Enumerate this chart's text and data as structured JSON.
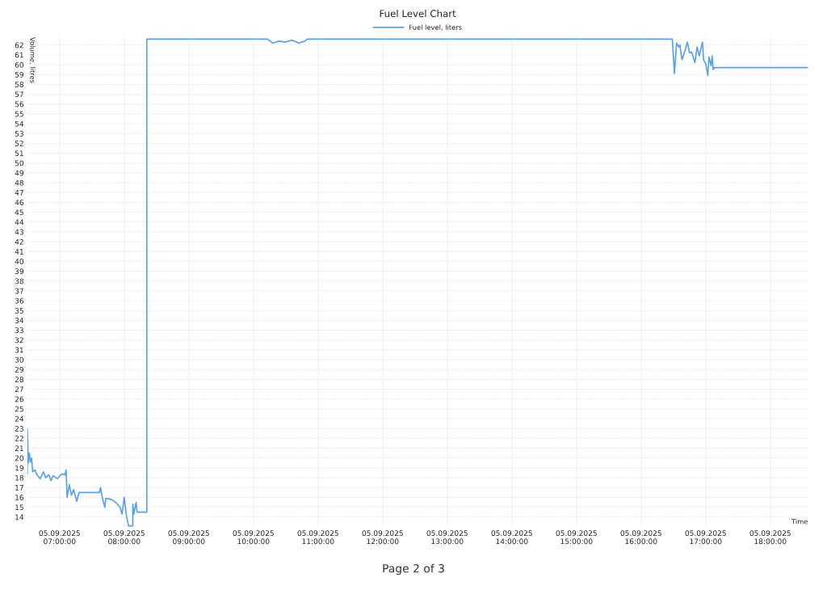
{
  "chart_data": {
    "type": "line",
    "title": "Fuel Level Chart",
    "xlabel": "Time",
    "ylabel": "Volume, litres",
    "annotations": [
      "Page 2 of 3"
    ],
    "legend": "top",
    "grid": true,
    "marker": "none",
    "line_style": "solid",
    "xlim": [
      "2025-09-05T06:30",
      "2025-09-05T18:35"
    ],
    "ylim": [
      13.0,
      62.8
    ],
    "xticks": [
      {
        "value": "2025-09-05T07:00",
        "label": "05.09.2025\n07:00:00"
      },
      {
        "value": "2025-09-05T08:00",
        "label": "05.09.2025\n08:00:00"
      },
      {
        "value": "2025-09-05T09:00",
        "label": "05.09.2025\n09:00:00"
      },
      {
        "value": "2025-09-05T10:00",
        "label": "05.09.2025\n10:00:00"
      },
      {
        "value": "2025-09-05T11:00",
        "label": "05.09.2025\n11:00:00"
      },
      {
        "value": "2025-09-05T12:00",
        "label": "05.09.2025\n12:00:00"
      },
      {
        "value": "2025-09-05T13:00",
        "label": "05.09.2025\n13:00:00"
      },
      {
        "value": "2025-09-05T14:00",
        "label": "05.09.2025\n14:00:00"
      },
      {
        "value": "2025-09-05T15:00",
        "label": "05.09.2025\n15:00:00"
      },
      {
        "value": "2025-09-05T16:00",
        "label": "05.09.2025\n16:00:00"
      },
      {
        "value": "2025-09-05T17:00",
        "label": "05.09.2025\n17:00:00"
      },
      {
        "value": "2025-09-05T18:00",
        "label": "05.09.2025\n18:00:00"
      }
    ],
    "yticks": [
      14,
      15,
      16,
      17,
      18,
      19,
      20,
      21,
      22,
      23,
      24,
      25,
      26,
      27,
      28,
      29,
      30,
      31,
      32,
      33,
      34,
      35,
      36,
      37,
      38,
      39,
      40,
      41,
      42,
      43,
      44,
      45,
      46,
      47,
      48,
      49,
      50,
      51,
      52,
      53,
      54,
      55,
      56,
      57,
      58,
      59,
      60,
      61,
      62
    ],
    "series": [
      {
        "name": "Fuel level, liters",
        "color": "#5aa0e8",
        "x": [
          "2025-09-05T06:30",
          "2025-09-05T06:30",
          "2025-09-05T06:31",
          "2025-09-05T06:32",
          "2025-09-05T06:33",
          "2025-09-05T06:34",
          "2025-09-05T06:35",
          "2025-09-05T06:37",
          "2025-09-05T06:39",
          "2025-09-05T06:42",
          "2025-09-05T06:45",
          "2025-09-05T06:47",
          "2025-09-05T06:50",
          "2025-09-05T06:52",
          "2025-09-05T06:54",
          "2025-09-05T06:58",
          "2025-09-05T07:02",
          "2025-09-05T07:05",
          "2025-09-05T07:06",
          "2025-09-05T07:07",
          "2025-09-05T07:09",
          "2025-09-05T07:11",
          "2025-09-05T07:13",
          "2025-09-05T07:16",
          "2025-09-05T07:18",
          "2025-09-05T07:37",
          "2025-09-05T07:38",
          "2025-09-05T07:40",
          "2025-09-05T07:42",
          "2025-09-05T07:43",
          "2025-09-05T07:48",
          "2025-09-05T07:52",
          "2025-09-05T07:56",
          "2025-09-05T07:58",
          "2025-09-05T08:00",
          "2025-09-05T08:02",
          "2025-09-05T08:04",
          "2025-09-05T08:08",
          "2025-09-05T08:08",
          "2025-09-05T08:09",
          "2025-09-05T08:11",
          "2025-09-05T08:12",
          "2025-09-05T08:21",
          "2025-09-05T08:21",
          "2025-09-05T10:13",
          "2025-09-05T10:18",
          "2025-09-05T10:24",
          "2025-09-05T10:30",
          "2025-09-05T10:36",
          "2025-09-05T10:42",
          "2025-09-05T10:48",
          "2025-09-05T10:50",
          "2025-09-05T16:29",
          "2025-09-05T16:31",
          "2025-09-05T16:33",
          "2025-09-05T16:35",
          "2025-09-05T16:36",
          "2025-09-05T16:38",
          "2025-09-05T16:41",
          "2025-09-05T16:43",
          "2025-09-05T16:45",
          "2025-09-05T16:47",
          "2025-09-05T16:50",
          "2025-09-05T16:52",
          "2025-09-05T16:54",
          "2025-09-05T16:57",
          "2025-09-05T16:58",
          "2025-09-05T17:00",
          "2025-09-05T17:02",
          "2025-09-05T17:03",
          "2025-09-05T17:05",
          "2025-09-05T17:06",
          "2025-09-05T17:07",
          "2025-09-05T17:08",
          "2025-09-05T18:35"
        ],
        "values": [
          18.4,
          23.0,
          19.5,
          20.5,
          19.6,
          20.0,
          18.6,
          18.8,
          18.3,
          17.9,
          18.6,
          18.0,
          18.3,
          17.7,
          18.2,
          17.9,
          18.4,
          18.3,
          18.8,
          16.0,
          17.3,
          16.2,
          16.8,
          15.6,
          16.5,
          16.5,
          17.0,
          15.8,
          15.0,
          15.9,
          15.8,
          15.5,
          15.0,
          14.3,
          16.0,
          14.2,
          13.1,
          13.1,
          15.3,
          14.3,
          15.5,
          14.5,
          14.5,
          62.6,
          62.6,
          62.2,
          62.4,
          62.3,
          62.5,
          62.2,
          62.4,
          62.6,
          62.6,
          59.1,
          62.2,
          61.8,
          62.0,
          60.5,
          61.5,
          62.3,
          61.2,
          61.3,
          60.2,
          61.8,
          60.9,
          62.3,
          60.5,
          60.1,
          58.9,
          60.8,
          59.9,
          60.9,
          59.5,
          59.7,
          59.7
        ]
      }
    ]
  }
}
